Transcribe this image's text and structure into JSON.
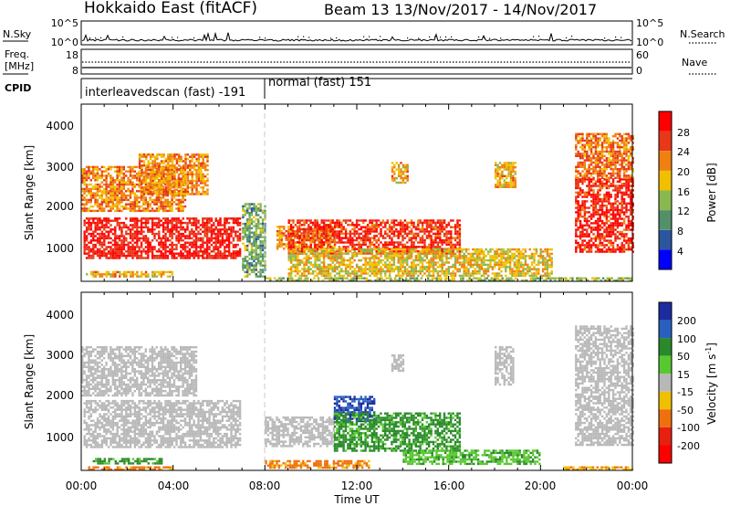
{
  "header": {
    "station": "Hokkaido East (fitACF)",
    "beam": "Beam 13",
    "dates": "13/Nov/2017 - 14/Nov/2017"
  },
  "noise_panel": {
    "left_label": "N.Sky",
    "right_label": "N.Search",
    "left_ticks": [
      "10^5",
      "10^0"
    ],
    "right_ticks": [
      "10^5",
      "10^0"
    ],
    "right_legend_style": "dotted"
  },
  "freq_panel": {
    "left_label_1": "Freq.",
    "left_label_2": "[MHz]",
    "right_label": "Nave",
    "left_ticks": [
      "18",
      "8"
    ],
    "right_ticks": [
      "60",
      "0"
    ],
    "right_legend_style": "dotted"
  },
  "cpid": {
    "label": "CPID",
    "modes": [
      {
        "name": "interleavedscan (fast) -191",
        "start_hour": 0,
        "end_hour": 8
      },
      {
        "name": "normal (fast) 151",
        "start_hour": 8,
        "end_hour": 24
      }
    ]
  },
  "time_axis": {
    "label": "Time UT",
    "ticks": [
      "00:00",
      "04:00",
      "08:00",
      "12:00",
      "16:00",
      "20:00",
      "00:00"
    ]
  },
  "power_colorbar": {
    "label": "Power [dB]",
    "ticks": [
      "4",
      "8",
      "12",
      "16",
      "20",
      "24",
      "28"
    ],
    "colors": [
      "#0000ff",
      "#2c55a0",
      "#52906a",
      "#8ab850",
      "#f0c000",
      "#f08010",
      "#e83818",
      "#ff0000"
    ]
  },
  "velocity_colorbar": {
    "label_prefix": "Velocity [m s",
    "label_sup": "-1",
    "label_suffix": "]",
    "ticks": [
      "200",
      "100",
      "50",
      "15",
      "-15",
      "-50",
      "-100",
      "-200"
    ],
    "colors": [
      "#1c2ca0",
      "#2860c0",
      "#2a8a2a",
      "#58c830",
      "#b8b8b8",
      "#f0c000",
      "#f07010",
      "#e82010",
      "#ff0000"
    ]
  },
  "chart_data": [
    {
      "type": "heatmap",
      "title": "Power",
      "xlabel": "Time UT",
      "ylabel": "Slant Range [km]",
      "ytick_labels": [
        "1000",
        "2000",
        "3000",
        "4000"
      ],
      "xlim": [
        0,
        24
      ],
      "ylim": [
        200,
        4500
      ],
      "colorbar_range": [
        0,
        32
      ],
      "regions": [
        {
          "t0": 0.1,
          "t1": 6.9,
          "r0": 750,
          "r1": 1750,
          "level": 29
        },
        {
          "t0": 0.0,
          "t1": 4.5,
          "r0": 1900,
          "r1": 3000,
          "level": 22
        },
        {
          "t0": 2.5,
          "t1": 5.5,
          "r0": 2300,
          "r1": 3300,
          "level": 21
        },
        {
          "t0": 0.2,
          "t1": 4.0,
          "r0": 300,
          "r1": 450,
          "level": 20
        },
        {
          "t0": 7.0,
          "t1": 8.0,
          "r0": 300,
          "r1": 2100,
          "level": 12
        },
        {
          "t0": 8.5,
          "t1": 11.0,
          "r0": 1000,
          "r1": 1550,
          "level": 21
        },
        {
          "t0": 9.0,
          "t1": 16.5,
          "r0": 900,
          "r1": 1700,
          "level": 27
        },
        {
          "t0": 9.0,
          "t1": 20.5,
          "r0": 350,
          "r1": 1000,
          "level": 18
        },
        {
          "t0": 13.5,
          "t1": 14.2,
          "r0": 2600,
          "r1": 3100,
          "level": 20
        },
        {
          "t0": 18.0,
          "t1": 18.9,
          "r0": 2500,
          "r1": 3100,
          "level": 20
        },
        {
          "t0": 21.5,
          "t1": 24.0,
          "r0": 900,
          "r1": 2700,
          "level": 28
        },
        {
          "t0": 21.5,
          "t1": 24.0,
          "r0": 2700,
          "r1": 3800,
          "level": 23
        },
        {
          "t0": 8.0,
          "t1": 24.0,
          "r0": 220,
          "r1": 300,
          "level": 14
        }
      ]
    },
    {
      "type": "heatmap",
      "title": "Velocity",
      "xlabel": "Time UT",
      "ylabel": "Slant Range [km]",
      "ytick_labels": [
        "1000",
        "2000",
        "3000",
        "4000"
      ],
      "xlim": [
        0,
        24
      ],
      "ylim": [
        200,
        4500
      ],
      "colorbar_range": [
        -250,
        250
      ],
      "regions": [
        {
          "t0": 0.1,
          "t1": 6.9,
          "r0": 750,
          "r1": 1900,
          "level": 0
        },
        {
          "t0": 0.0,
          "t1": 5.0,
          "r0": 2000,
          "r1": 3200,
          "level": 0
        },
        {
          "t0": 0.5,
          "t1": 3.5,
          "r0": 350,
          "r1": 500,
          "level": 35
        },
        {
          "t0": 0.3,
          "t1": 4.0,
          "r0": 220,
          "r1": 300,
          "level": -35
        },
        {
          "t0": 8.0,
          "t1": 11.0,
          "r0": 800,
          "r1": 1500,
          "level": 0
        },
        {
          "t0": 11.0,
          "t1": 12.8,
          "r0": 1400,
          "r1": 2000,
          "level": 150
        },
        {
          "t0": 11.0,
          "t1": 16.5,
          "r0": 700,
          "r1": 1600,
          "level": 35
        },
        {
          "t0": 14.0,
          "t1": 20.0,
          "r0": 350,
          "r1": 700,
          "level": 30
        },
        {
          "t0": 8.0,
          "t1": 12.5,
          "r0": 280,
          "r1": 450,
          "level": -35
        },
        {
          "t0": 13.5,
          "t1": 14.0,
          "r0": 2600,
          "r1": 3000,
          "level": 0
        },
        {
          "t0": 18.0,
          "t1": 18.8,
          "r0": 2300,
          "r1": 3200,
          "level": 0
        },
        {
          "t0": 21.5,
          "t1": 24.0,
          "r0": 800,
          "r1": 3700,
          "level": 0
        },
        {
          "t0": 21.0,
          "t1": 24.0,
          "r0": 220,
          "r1": 300,
          "level": -30
        }
      ]
    }
  ]
}
